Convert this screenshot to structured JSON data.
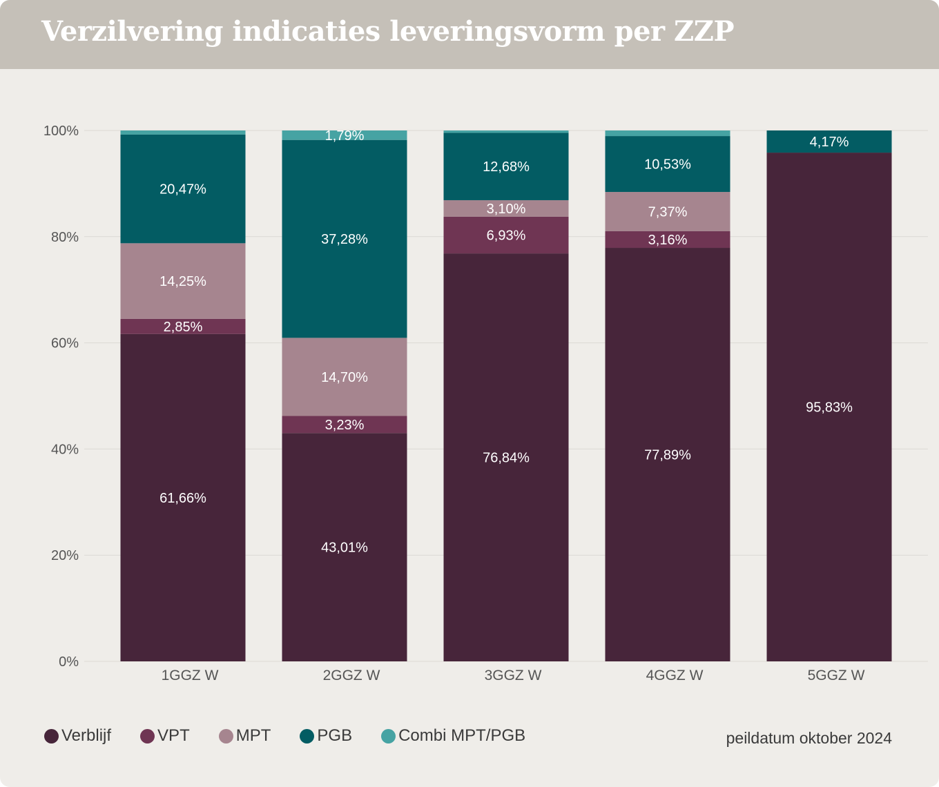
{
  "title": "Verzilvering indicaties leveringsvorm per ZZP",
  "note": "peildatum oktober 2024",
  "chart_data": {
    "type": "bar",
    "stacked": true,
    "categories": [
      "1GGZ W",
      "2GGZ W",
      "3GGZ W",
      "4GGZ W",
      "5GGZ W"
    ],
    "ylim": [
      0,
      100
    ],
    "y_ticks": [
      0,
      20,
      40,
      60,
      80,
      100
    ],
    "y_tick_labels": [
      "0%",
      "20%",
      "40%",
      "60%",
      "80%",
      "100%"
    ],
    "grid": true,
    "legend_position": "bottom-left",
    "series": [
      {
        "name": "Verblijf",
        "color": "#47253a",
        "values": [
          61.66,
          43.01,
          76.84,
          77.89,
          95.83
        ],
        "labels": [
          "61,66%",
          "43,01%",
          "76,84%",
          "77,89%",
          "95,83%"
        ]
      },
      {
        "name": "VPT",
        "color": "#6f3553",
        "values": [
          2.85,
          3.23,
          6.93,
          3.16,
          0
        ],
        "labels": [
          "2,85%",
          "3,23%",
          "6,93%",
          "3,16%",
          ""
        ]
      },
      {
        "name": "MPT",
        "color": "#a6858f",
        "values": [
          14.25,
          14.7,
          3.1,
          7.37,
          0
        ],
        "labels": [
          "14,25%",
          "14,70%",
          "3,10%",
          "7,37%",
          ""
        ]
      },
      {
        "name": "PGB",
        "color": "#035c63",
        "values": [
          20.47,
          37.28,
          12.68,
          10.53,
          4.17
        ],
        "labels": [
          "20,47%",
          "37,28%",
          "12,68%",
          "10,53%",
          "4,17%"
        ]
      },
      {
        "name": "Combi MPT/PGB",
        "color": "#46a3a3",
        "values": [
          0.77,
          1.79,
          0.45,
          1.05,
          0
        ],
        "labels": [
          "",
          "1,79%",
          "",
          "",
          ""
        ]
      }
    ]
  },
  "colors": {
    "background": "#efede9",
    "header": "#c5c0b8",
    "grid": "#dcd9d4",
    "axis_text": "#555555"
  }
}
